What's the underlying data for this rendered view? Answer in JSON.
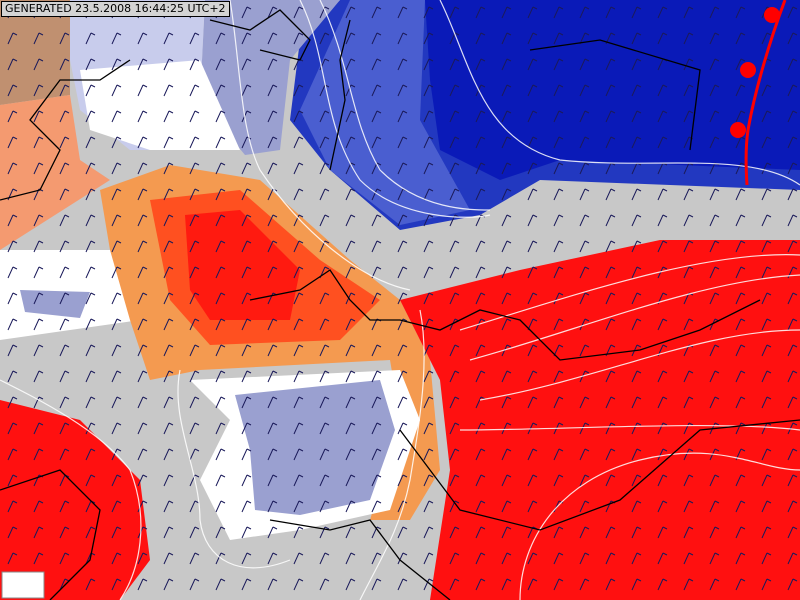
{
  "map": {
    "label": "GENERATED 23.5.2008 16:44:25 UTC+2"
  }
}
